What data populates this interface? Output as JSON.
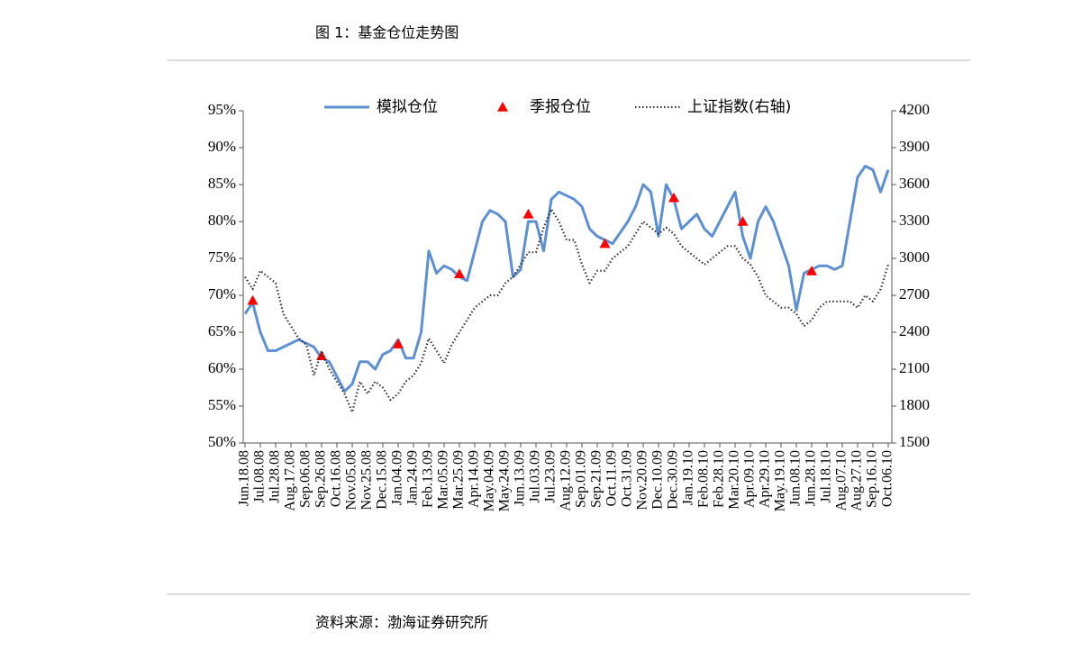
{
  "chart_data": {
    "type": "line",
    "title": "图 1：基金仓位走势图",
    "source": "资料来源：渤海证券研究所",
    "categories": [
      "Jun.18.08",
      null,
      "Jul.08.08",
      null,
      "Jul.28.08",
      null,
      "Aug.17.08",
      null,
      "Sep.06.08",
      null,
      "Sep.26.08",
      null,
      "Oct.16.08",
      null,
      "Nov.05.08",
      null,
      "Nov.25.08",
      null,
      "Dec.15.08",
      null,
      "Jan.04.09",
      null,
      "Jan.24.09",
      null,
      "Feb.13.09",
      null,
      "Mar.05.09",
      null,
      "Mar.25.09",
      null,
      "Apr.14.09",
      null,
      "May.04.09",
      null,
      "May.24.09",
      null,
      "Jun.13.09",
      null,
      "Jul.03.09",
      null,
      "Jul.23.09",
      null,
      "Aug.12.09",
      null,
      "Sep.01.09",
      null,
      "Sep.21.09",
      null,
      "Oct.11.09",
      null,
      "Oct.31.09",
      null,
      "Nov.20.09",
      null,
      "Dec.10.09",
      null,
      "Dec.30.09",
      null,
      "Jan.19.10",
      null,
      "Feb.08.10",
      null,
      "Feb.28.10",
      null,
      "Mar.20.10",
      null,
      "Apr.09.10",
      null,
      "Apr.29.10",
      null,
      "May.19.10",
      null,
      "Jun.08.10",
      null,
      "Jun.28.10",
      null,
      "Jul.18.10",
      null,
      "Aug.07.10",
      null,
      "Aug.27.10",
      null,
      "Sep.16.10",
      null,
      "Oct.06.10"
    ],
    "series": [
      {
        "name": "模拟仓位",
        "color": "#5b8fd6",
        "style": "line",
        "values": [
          67.5,
          69,
          65,
          62.5,
          62.5,
          63,
          63.5,
          64,
          63.5,
          63,
          61.5,
          61,
          59,
          57,
          58,
          61,
          61,
          60,
          62,
          62.5,
          64,
          61.5,
          61.5,
          65,
          76,
          73,
          74,
          73.5,
          72.5,
          72,
          76,
          80,
          81.5,
          81,
          80,
          72.5,
          73.5,
          80,
          80,
          76,
          83,
          84,
          83.5,
          83,
          82,
          79,
          78,
          77.5,
          77,
          78.5,
          80,
          82,
          85,
          84,
          78,
          85,
          83,
          79,
          80,
          81,
          79,
          78,
          80,
          82,
          84,
          78,
          75,
          80,
          82,
          80,
          77,
          74,
          68,
          73,
          73.5,
          74,
          74,
          73.5,
          74,
          80,
          86,
          87.5,
          87,
          84,
          87
        ]
      },
      {
        "name": "季报仓位",
        "color": "#ff0000",
        "style": "marker",
        "values": [
          null,
          69.3,
          null,
          null,
          null,
          null,
          null,
          null,
          null,
          null,
          61.8,
          null,
          null,
          null,
          null,
          null,
          null,
          null,
          null,
          null,
          63.4,
          null,
          null,
          null,
          null,
          null,
          null,
          null,
          72.9,
          null,
          null,
          null,
          null,
          null,
          null,
          null,
          null,
          81,
          null,
          null,
          null,
          null,
          null,
          null,
          null,
          null,
          null,
          77,
          null,
          null,
          null,
          null,
          null,
          null,
          null,
          null,
          83.2,
          null,
          null,
          null,
          null,
          null,
          null,
          null,
          null,
          80,
          null,
          null,
          null,
          null,
          null,
          null,
          null,
          null,
          73.3,
          null,
          null,
          null,
          null,
          null,
          null,
          null,
          null,
          null,
          null
        ]
      },
      {
        "name": "上证指数(右轴)",
        "color": "#333333",
        "style": "dotted",
        "axis": "y2",
        "values": [
          2850,
          2750,
          2900,
          2850,
          2800,
          2550,
          2450,
          2350,
          2300,
          2050,
          2250,
          2100,
          2000,
          1900,
          1750,
          2000,
          1900,
          2000,
          1950,
          1850,
          1900,
          2000,
          2050,
          2150,
          2350,
          2250,
          2150,
          2300,
          2400,
          2500,
          2600,
          2650,
          2700,
          2700,
          2800,
          2850,
          2950,
          3050,
          3050,
          3250,
          3400,
          3300,
          3150,
          3150,
          2950,
          2800,
          2900,
          2900,
          3000,
          3050,
          3100,
          3200,
          3300,
          3250,
          3200,
          3250,
          3200,
          3100,
          3050,
          3000,
          2950,
          3000,
          3050,
          3100,
          3100,
          3000,
          2950,
          2850,
          2700,
          2650,
          2600,
          2600,
          2550,
          2450,
          2500,
          2600,
          2650,
          2650,
          2650,
          2650,
          2600,
          2700,
          2650,
          2750,
          2950
        ]
      }
    ],
    "ylim": [
      50,
      95
    ],
    "yticks": [
      {
        "value": 50,
        "label": "50%"
      },
      {
        "value": 55,
        "label": "55%"
      },
      {
        "value": 60,
        "label": "60%"
      },
      {
        "value": 65,
        "label": "65%"
      },
      {
        "value": 70,
        "label": "70%"
      },
      {
        "value": 75,
        "label": "75%"
      },
      {
        "value": 80,
        "label": "80%"
      },
      {
        "value": 85,
        "label": "85%"
      },
      {
        "value": 90,
        "label": "90%"
      },
      {
        "value": 95,
        "label": "95%"
      }
    ],
    "y2lim": [
      1500,
      4200
    ],
    "y2ticks": [
      1500,
      1800,
      2100,
      2400,
      2700,
      3000,
      3300,
      3600,
      3900,
      4200
    ],
    "grid": false,
    "legend": "top"
  }
}
